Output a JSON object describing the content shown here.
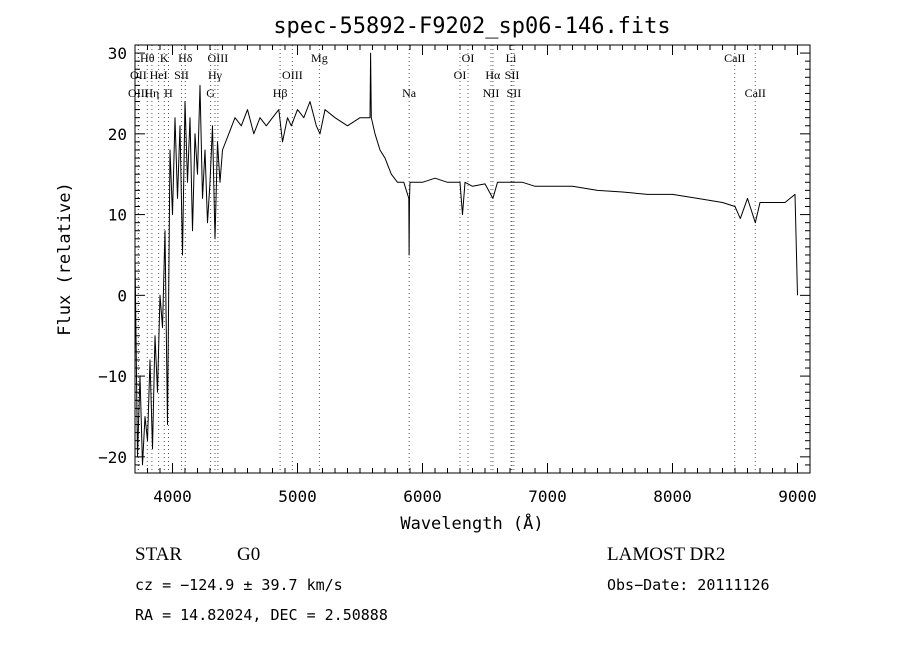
{
  "chart_data": {
    "type": "line",
    "title": "spec-55892-F9202_sp06-146.fits",
    "xlabel": "Wavelength (Å)",
    "ylabel": "Flux (relative)",
    "xlim": [
      3700,
      9100
    ],
    "ylim": [
      -22,
      31
    ],
    "grid": false,
    "xticks": [
      4000,
      5000,
      6000,
      7000,
      8000,
      9000
    ],
    "yticks": [
      -20,
      -10,
      0,
      10,
      20,
      30
    ],
    "series": [
      {
        "values": [
          [
            3700,
            5
          ],
          [
            3720,
            -20
          ],
          [
            3740,
            -10
          ],
          [
            3760,
            -21
          ],
          [
            3780,
            -15
          ],
          [
            3800,
            -18
          ],
          [
            3820,
            -8
          ],
          [
            3840,
            -19
          ],
          [
            3860,
            -5
          ],
          [
            3880,
            -12
          ],
          [
            3900,
            0
          ],
          [
            3920,
            -4
          ],
          [
            3940,
            8
          ],
          [
            3960,
            -16
          ],
          [
            3980,
            18
          ],
          [
            4000,
            10
          ],
          [
            4020,
            22
          ],
          [
            4040,
            12
          ],
          [
            4060,
            21
          ],
          [
            4080,
            5
          ],
          [
            4100,
            24
          ],
          [
            4120,
            14
          ],
          [
            4140,
            22
          ],
          [
            4160,
            8
          ],
          [
            4180,
            20
          ],
          [
            4200,
            15
          ],
          [
            4220,
            26
          ],
          [
            4240,
            12
          ],
          [
            4260,
            18
          ],
          [
            4280,
            9
          ],
          [
            4300,
            14
          ],
          [
            4320,
            21
          ],
          [
            4340,
            7
          ],
          [
            4360,
            19
          ],
          [
            4380,
            14
          ],
          [
            4400,
            18
          ],
          [
            4450,
            20
          ],
          [
            4500,
            22
          ],
          [
            4550,
            21
          ],
          [
            4600,
            23
          ],
          [
            4650,
            20
          ],
          [
            4700,
            22
          ],
          [
            4750,
            21
          ],
          [
            4800,
            22
          ],
          [
            4850,
            23
          ],
          [
            4880,
            19
          ],
          [
            4920,
            22
          ],
          [
            4950,
            21
          ],
          [
            5000,
            23
          ],
          [
            5050,
            22
          ],
          [
            5100,
            24
          ],
          [
            5150,
            21
          ],
          [
            5180,
            20
          ],
          [
            5220,
            23
          ],
          [
            5300,
            22
          ],
          [
            5400,
            21
          ],
          [
            5500,
            22
          ],
          [
            5580,
            22
          ],
          [
            5585,
            30
          ],
          [
            5590,
            22
          ],
          [
            5620,
            20
          ],
          [
            5660,
            18
          ],
          [
            5700,
            17
          ],
          [
            5750,
            15
          ],
          [
            5800,
            14
          ],
          [
            5850,
            14
          ],
          [
            5890,
            12
          ],
          [
            5893,
            5
          ],
          [
            5896,
            12
          ],
          [
            5900,
            14
          ],
          [
            6000,
            14
          ],
          [
            6100,
            14.5
          ],
          [
            6200,
            14
          ],
          [
            6300,
            14
          ],
          [
            6320,
            10
          ],
          [
            6340,
            14
          ],
          [
            6400,
            13.5
          ],
          [
            6500,
            13.8
          ],
          [
            6563,
            12
          ],
          [
            6600,
            14
          ],
          [
            6700,
            14
          ],
          [
            6800,
            14
          ],
          [
            6900,
            13.5
          ],
          [
            7000,
            13.5
          ],
          [
            7200,
            13.5
          ],
          [
            7400,
            13
          ],
          [
            7600,
            12.8
          ],
          [
            7800,
            12.5
          ],
          [
            8000,
            12.5
          ],
          [
            8200,
            12
          ],
          [
            8400,
            11.5
          ],
          [
            8500,
            11
          ],
          [
            8542,
            9.5
          ],
          [
            8600,
            12
          ],
          [
            8662,
            9
          ],
          [
            8700,
            11.5
          ],
          [
            8800,
            11.5
          ],
          [
            8900,
            11.5
          ],
          [
            8980,
            12.5
          ],
          [
            9000,
            0
          ]
        ]
      }
    ],
    "lines": [
      {
        "label": "Hθ",
        "x": 3798,
        "row": 1,
        "color": "#555555"
      },
      {
        "label": "OII",
        "x": 3727,
        "row": 2,
        "color": "#555555"
      },
      {
        "label": "OIII",
        "x": 3727,
        "row": 3,
        "color": "#555555"
      },
      {
        "label": "K",
        "x": 3934,
        "row": 1,
        "color": "#555555"
      },
      {
        "label": "HeI",
        "x": 3889,
        "row": 2,
        "color": "#555555"
      },
      {
        "label": "Hη",
        "x": 3835,
        "row": 3,
        "color": "#555555"
      },
      {
        "label": "SII",
        "x": 4072,
        "row": 2,
        "color": "#555555"
      },
      {
        "label": "H",
        "x": 3968,
        "row": 3,
        "color": "#555555"
      },
      {
        "label": "Hδ",
        "x": 4102,
        "row": 1,
        "color": "#555555"
      },
      {
        "label": "OIII",
        "x": 4363,
        "row": 1,
        "color": "#555555"
      },
      {
        "label": "Hγ",
        "x": 4340,
        "row": 2,
        "color": "#555555"
      },
      {
        "label": "G",
        "x": 4305,
        "row": 3,
        "color": "#555555"
      },
      {
        "label": "Mg",
        "x": 5175,
        "row": 1,
        "color": "#555555"
      },
      {
        "label": "OIII",
        "x": 4959,
        "row": 2,
        "color": "#555555"
      },
      {
        "label": "Hβ",
        "x": 4861,
        "row": 3,
        "color": "#555555"
      },
      {
        "label": "Na",
        "x": 5893,
        "row": 3,
        "color": "#555555"
      },
      {
        "label": "OI",
        "x": 6364,
        "row": 1,
        "color": "#c0392b"
      },
      {
        "label": "OI",
        "x": 6300,
        "row": 2,
        "color": "#c0392b"
      },
      {
        "label": "Li",
        "x": 6708,
        "row": 1,
        "color": "#c0392b"
      },
      {
        "label": "Hα",
        "x": 6563,
        "row": 2,
        "color": "#c0392b"
      },
      {
        "label": "SII",
        "x": 6716,
        "row": 2,
        "color": "#c0392b"
      },
      {
        "label": "NII",
        "x": 6548,
        "row": 3,
        "color": "#c0392b"
      },
      {
        "label": "SII",
        "x": 6731,
        "row": 3,
        "color": "#c0392b"
      },
      {
        "label": "CaII",
        "x": 8498,
        "row": 1,
        "color": "#c0392b"
      },
      {
        "label": "CaII",
        "x": 8662,
        "row": 3,
        "color": "#c0392b"
      }
    ]
  },
  "info": {
    "class": "STAR",
    "subclass": "G0",
    "survey": "LAMOST DR2",
    "cz": "cz = −124.9 ± 39.7 km/s",
    "obs_date": "Obs−Date: 20111126",
    "radec": "RA =  14.82024, DEC =    2.50888"
  }
}
